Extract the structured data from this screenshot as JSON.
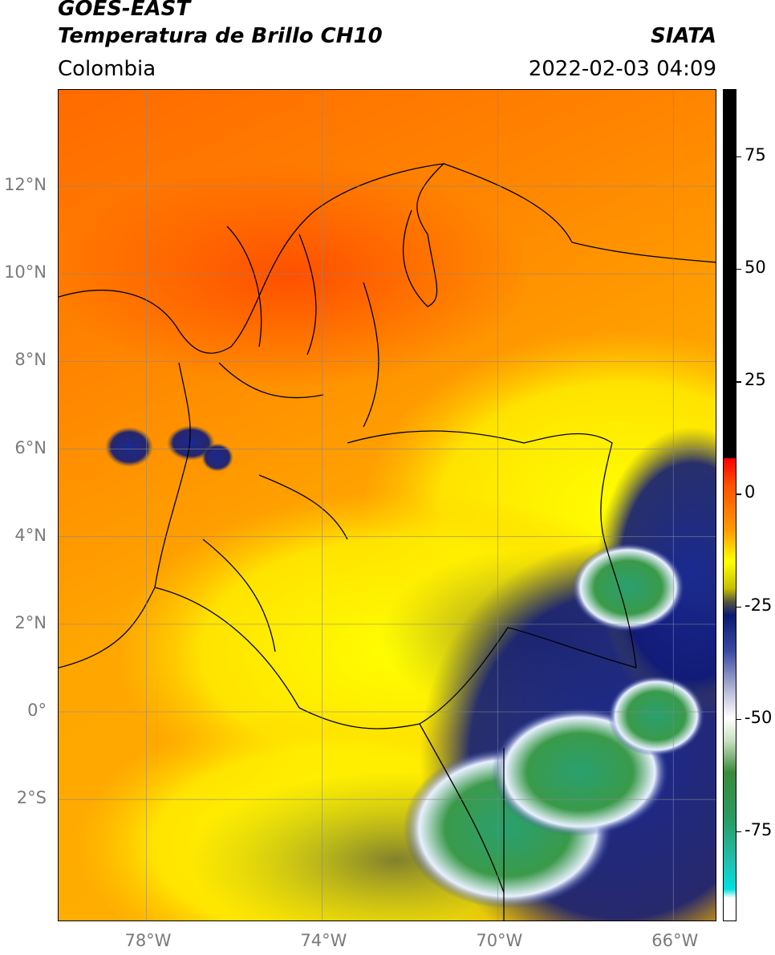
{
  "header": {
    "title_line1": "GOES-EAST",
    "title_line2": "Temperatura de Brillo CH10",
    "source": "SIATA",
    "region": "Colombia",
    "datetime": "2022-02-03 04:09"
  },
  "map": {
    "lat_range": [
      -4.8,
      14.2
    ],
    "lon_range": [
      -80.0,
      -65.0
    ],
    "lat_ticks": [
      {
        "value": 12,
        "label": "12°N"
      },
      {
        "value": 10,
        "label": "10°N"
      },
      {
        "value": 8,
        "label": "8°N"
      },
      {
        "value": 6,
        "label": "6°N"
      },
      {
        "value": 4,
        "label": "4°N"
      },
      {
        "value": 2,
        "label": "2°N"
      },
      {
        "value": 0,
        "label": "0°"
      },
      {
        "value": -2,
        "label": "2°S"
      }
    ],
    "lon_ticks": [
      {
        "value": -78,
        "label": "78°W"
      },
      {
        "value": -74,
        "label": "74°W"
      },
      {
        "value": -70,
        "label": "70°W"
      },
      {
        "value": -66,
        "label": "66°W"
      }
    ],
    "grid": true,
    "colors": {
      "warm": "#ff8c00",
      "hot": "#ff5a00",
      "mid": "#ffd400",
      "cool": "#ffff00",
      "olive": "#8a8a30",
      "navy": "#101a80",
      "white": "#ffffff",
      "green": "#2e8b3e",
      "teal": "#1fae8c"
    }
  },
  "colorbar": {
    "range": [
      -95,
      90
    ],
    "ticks": [
      {
        "value": 75,
        "label": "75"
      },
      {
        "value": 50,
        "label": "50"
      },
      {
        "value": 25,
        "label": "25"
      },
      {
        "value": 0,
        "label": "0"
      },
      {
        "value": -25,
        "label": "-25"
      },
      {
        "value": -50,
        "label": "-50"
      },
      {
        "value": -75,
        "label": "-75"
      }
    ],
    "stops": [
      {
        "value": 90,
        "color": "#000000"
      },
      {
        "value": 8,
        "color": "#000000"
      },
      {
        "value": 7.9,
        "color": "#ff0000"
      },
      {
        "value": 2,
        "color": "#ff5000"
      },
      {
        "value": -8,
        "color": "#ff9a00"
      },
      {
        "value": -15,
        "color": "#ffff00"
      },
      {
        "value": -21,
        "color": "#c8c000"
      },
      {
        "value": -24,
        "color": "#555540"
      },
      {
        "value": -27,
        "color": "#0a1a70"
      },
      {
        "value": -35,
        "color": "#3a4aa0"
      },
      {
        "value": -45,
        "color": "#c8c8e0"
      },
      {
        "value": -50,
        "color": "#ffffff"
      },
      {
        "value": -55,
        "color": "#c8e0c0"
      },
      {
        "value": -62,
        "color": "#3a8a3a"
      },
      {
        "value": -72,
        "color": "#2a9a60"
      },
      {
        "value": -82,
        "color": "#20c0b0"
      },
      {
        "value": -88,
        "color": "#00e0e0"
      },
      {
        "value": -90,
        "color": "#ffffff"
      },
      {
        "value": -95,
        "color": "#ffffff"
      }
    ]
  }
}
